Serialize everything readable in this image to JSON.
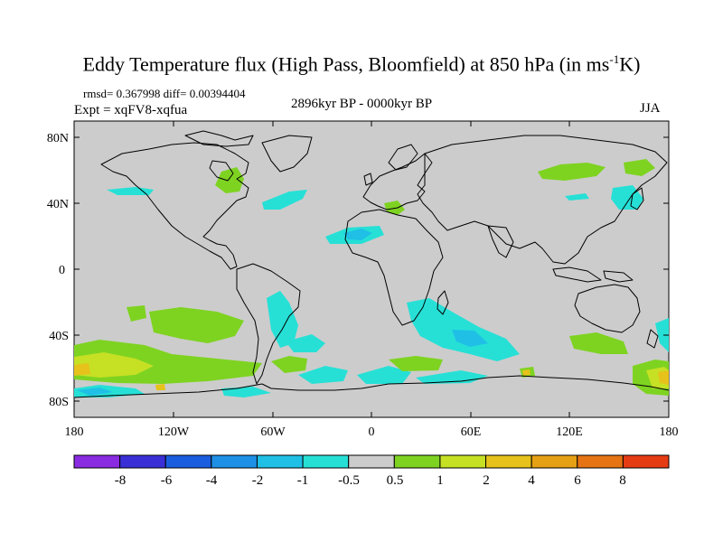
{
  "title_main": "Eddy Temperature flux (High Pass, Bloomfield) at 850 hPa (in ms",
  "title_sup": "-1",
  "title_tail": "K)",
  "stats": "rmsd= 0.367998 diff= 0.00394404",
  "expt": "Expt = xqFV8-xqfua",
  "period": "2896kyr BP - 0000kyr BP",
  "season": "JJA",
  "y_ticks": [
    "80N",
    "40N",
    "0",
    "40S",
    "80S"
  ],
  "x_ticks": [
    "180",
    "120W",
    "60W",
    "0",
    "60E",
    "120E",
    "180"
  ],
  "colorbar": {
    "labels": [
      "-8",
      "-6",
      "-4",
      "-2",
      "-1",
      "-0.5",
      "0.5",
      "1",
      "2",
      "4",
      "6",
      "8"
    ],
    "colors": [
      "#8a2be2",
      "#3a2fd6",
      "#1a5ee0",
      "#1e90e6",
      "#1fbfe6",
      "#26e0d6",
      "#cccccc",
      "#7ed321",
      "#c6e024",
      "#e6c21a",
      "#e6a014",
      "#e67314",
      "#e63c14"
    ]
  },
  "colors": {
    "ocean_bg": "#cccccc",
    "coast": "#000000"
  }
}
